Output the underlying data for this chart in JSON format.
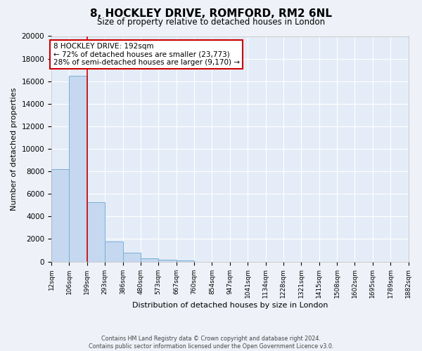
{
  "title": "8, HOCKLEY DRIVE, ROMFORD, RM2 6NL",
  "subtitle": "Size of property relative to detached houses in London",
  "bar_values": [
    8200,
    16500,
    5300,
    1800,
    800,
    300,
    150,
    100,
    0,
    0,
    0,
    0,
    0,
    0,
    0,
    0,
    0,
    0,
    0,
    0
  ],
  "bin_labels": [
    "12sqm",
    "106sqm",
    "199sqm",
    "293sqm",
    "386sqm",
    "480sqm",
    "573sqm",
    "667sqm",
    "760sqm",
    "854sqm",
    "947sqm",
    "1041sqm",
    "1134sqm",
    "1228sqm",
    "1321sqm",
    "1415sqm",
    "1508sqm",
    "1602sqm",
    "1695sqm",
    "1789sqm",
    "1882sqm"
  ],
  "bar_color": "#c5d8f0",
  "bar_edge_color": "#7bafd4",
  "property_line_color": "#cc0000",
  "ylabel": "Number of detached properties",
  "xlabel": "Distribution of detached houses by size in London",
  "ylim": [
    0,
    20000
  ],
  "yticks": [
    0,
    2000,
    4000,
    6000,
    8000,
    10000,
    12000,
    14000,
    16000,
    18000,
    20000
  ],
  "annotation_title": "8 HOCKLEY DRIVE: 192sqm",
  "annotation_line1": "← 72% of detached houses are smaller (23,773)",
  "annotation_line2": "28% of semi-detached houses are larger (9,170) →",
  "footer_line1": "Contains HM Land Registry data © Crown copyright and database right 2024.",
  "footer_line2": "Contains public sector information licensed under the Open Government Licence v3.0.",
  "bg_color": "#eef2f8",
  "plot_bg_color": "#e4ecf7"
}
